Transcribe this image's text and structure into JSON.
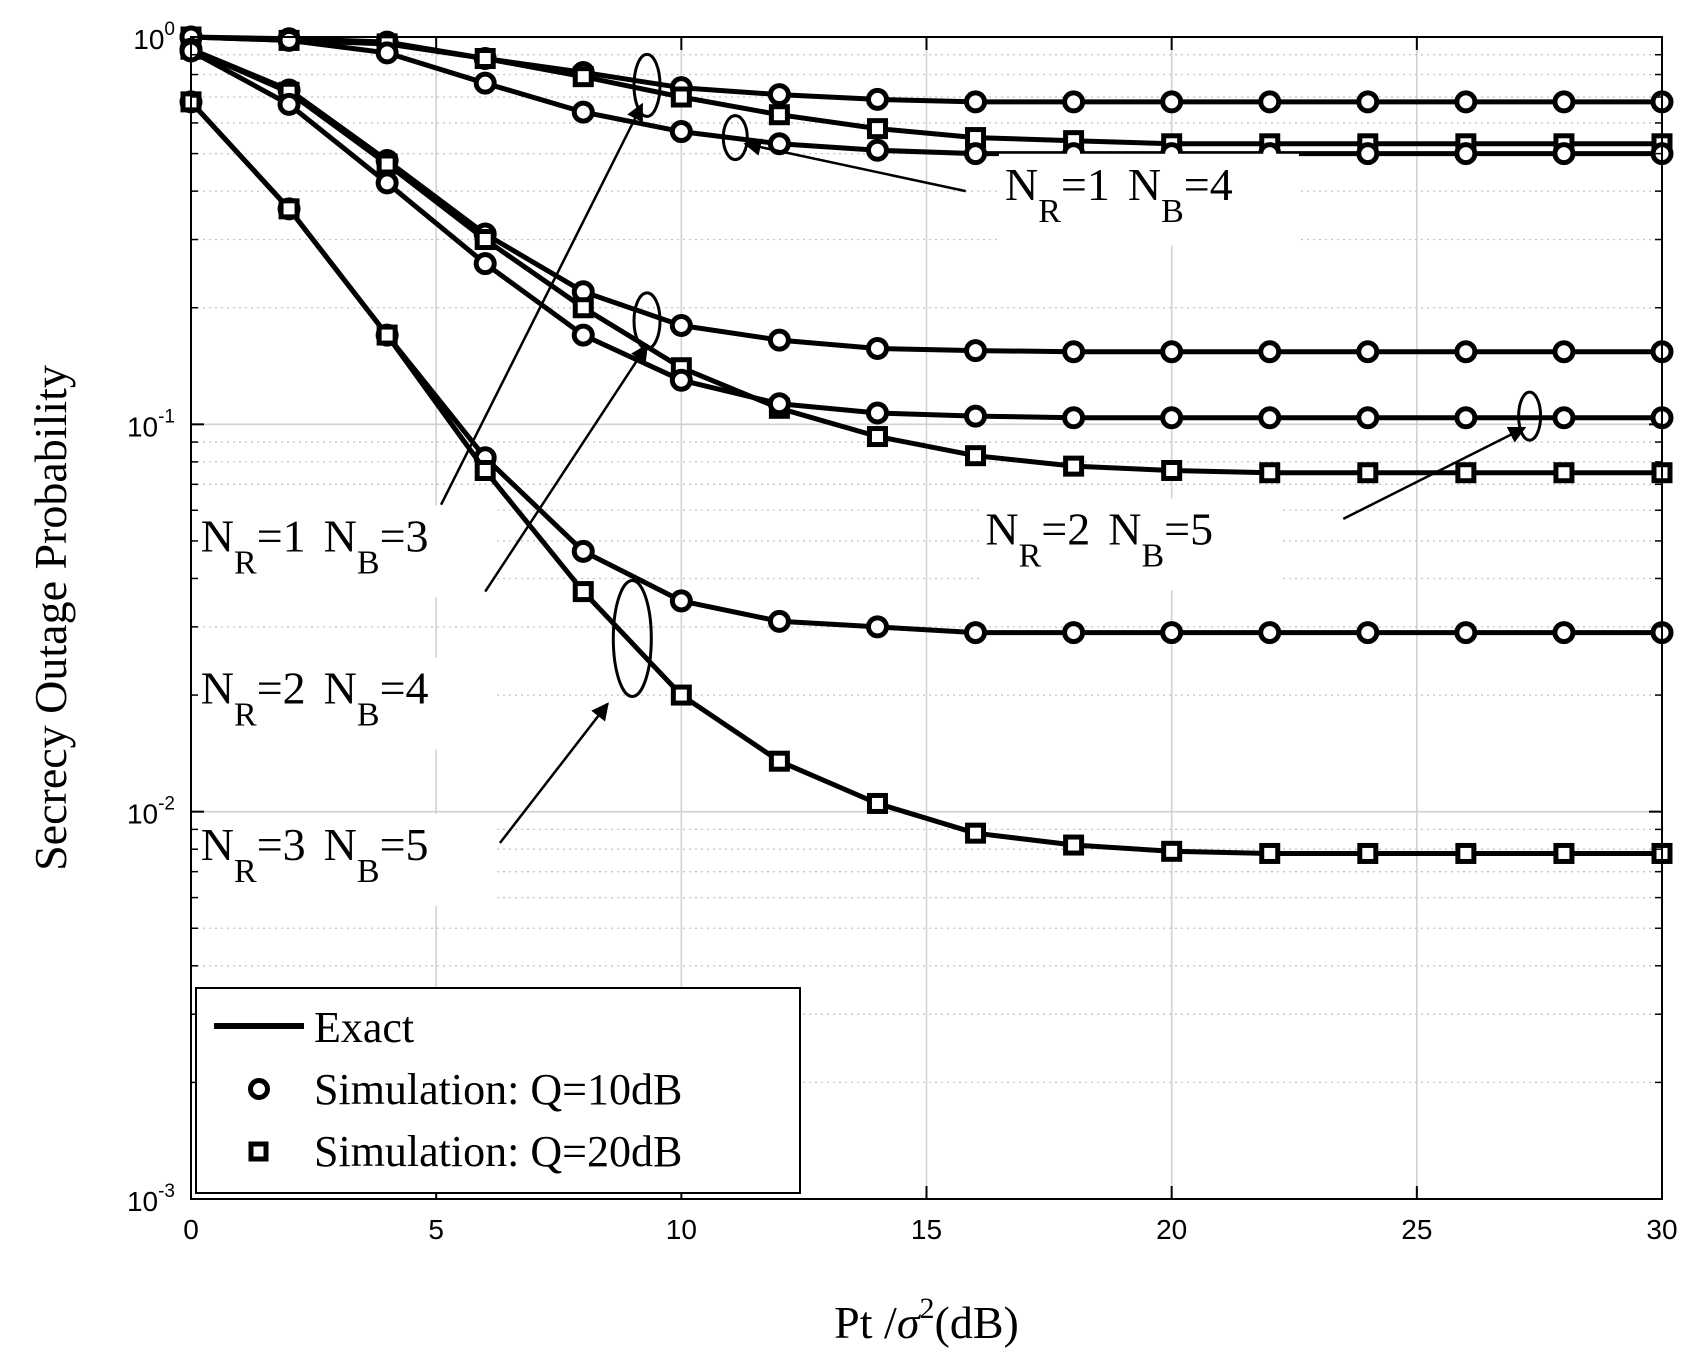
{
  "chart_data": {
    "type": "line",
    "xlabel": "Pt /σ²(dB)",
    "xlabel_parts": {
      "main": "Pt /",
      "symbol": "σ",
      "exponent": "2",
      "tail": "(dB)"
    },
    "ylabel": "Secrecy Outage Probability",
    "xlim": [
      0,
      30
    ],
    "ylim": [
      0.001,
      1
    ],
    "yscale": "log",
    "grid": true,
    "x_ticks": [
      "0",
      "5",
      "10",
      "15",
      "20",
      "25",
      "30"
    ],
    "y_ticks": [
      {
        "base": "10",
        "exp": "0"
      },
      {
        "base": "10",
        "exp": "-1"
      },
      {
        "base": "10",
        "exp": "-2"
      },
      {
        "base": "10",
        "exp": "-3"
      }
    ],
    "x": [
      0,
      2,
      4,
      6,
      8,
      10,
      12,
      14,
      16,
      18,
      20,
      22,
      24,
      26,
      28,
      30
    ],
    "series": [
      {
        "group": "NR=1 NB=3",
        "marker": "circle",
        "values": [
          1.0,
          0.99,
          0.97,
          0.88,
          0.81,
          0.74,
          0.71,
          0.69,
          0.68,
          0.68,
          0.68,
          0.68,
          0.68,
          0.68,
          0.68,
          0.68
        ]
      },
      {
        "group": "NR=1 NB=3",
        "marker": "square",
        "values": [
          1.0,
          0.98,
          0.96,
          0.88,
          0.79,
          0.7,
          0.63,
          0.58,
          0.55,
          0.54,
          0.53,
          0.53,
          0.53,
          0.53,
          0.53,
          0.53
        ]
      },
      {
        "group": "NR=1 NB=4",
        "marker": "circle",
        "values": [
          1.0,
          0.98,
          0.91,
          0.76,
          0.64,
          0.57,
          0.53,
          0.51,
          0.5,
          0.5,
          0.5,
          0.5,
          0.5,
          0.5,
          0.5,
          0.5
        ]
      },
      {
        "group": "NR=2 NB=4",
        "marker": "circle",
        "values": [
          0.93,
          0.73,
          0.48,
          0.31,
          0.22,
          0.18,
          0.165,
          0.157,
          0.155,
          0.154,
          0.154,
          0.154,
          0.154,
          0.154,
          0.154,
          0.154
        ]
      },
      {
        "group": "NR=2 NB=4",
        "marker": "square",
        "values": [
          0.93,
          0.72,
          0.47,
          0.3,
          0.2,
          0.14,
          0.11,
          0.093,
          0.083,
          0.078,
          0.076,
          0.075,
          0.075,
          0.075,
          0.075,
          0.075
        ]
      },
      {
        "group": "NR=2 NB=5",
        "marker": "circle",
        "values": [
          0.92,
          0.67,
          0.42,
          0.26,
          0.17,
          0.13,
          0.113,
          0.107,
          0.105,
          0.104,
          0.104,
          0.104,
          0.104,
          0.104,
          0.104,
          0.104
        ]
      },
      {
        "group": "NR=3 NB=5",
        "marker": "circle",
        "values": [
          0.68,
          0.36,
          0.17,
          0.082,
          0.047,
          0.035,
          0.031,
          0.03,
          0.029,
          0.029,
          0.029,
          0.029,
          0.029,
          0.029,
          0.029,
          0.029
        ]
      },
      {
        "group": "NR=3 NB=5",
        "marker": "square",
        "values": [
          0.68,
          0.36,
          0.17,
          0.076,
          0.037,
          0.02,
          0.0135,
          0.0105,
          0.0088,
          0.0082,
          0.0079,
          0.0078,
          0.0078,
          0.0078,
          0.0078,
          0.0078
        ]
      }
    ],
    "annotations": [
      {
        "id": "nr1nb4",
        "N": "N",
        "R": "R",
        "eq1": "=1",
        "B": "B",
        "eq2": "=4",
        "ellipse": {
          "x": 11.1,
          "y": 0.55
        },
        "text_x": 16.6,
        "text_y": 0.38,
        "arrow_from": {
          "x": 15.8,
          "y": 0.4
        },
        "arrow_to": {
          "x": 11.3,
          "y": 0.53
        }
      },
      {
        "id": "nr1nb3",
        "N": "N",
        "R": "R",
        "eq1": "=1",
        "B": "B",
        "eq2": "=3",
        "ellipse": {
          "x": 9.3,
          "y": 0.75
        },
        "text_x": 0.2,
        "text_y": 0.047,
        "arrow_from": {
          "x": 5.1,
          "y": 0.062
        },
        "arrow_to": {
          "x": 9.2,
          "y": 0.67
        }
      },
      {
        "id": "nr2nb4",
        "N": "N",
        "R": "R",
        "eq1": "=2",
        "B": "B",
        "eq2": "=4",
        "ellipse": {
          "x": 9.3,
          "y": 0.185
        },
        "text_x": 0.2,
        "text_y": 0.019,
        "arrow_from": {
          "x": 6.0,
          "y": 0.037
        },
        "arrow_to": {
          "x": 9.3,
          "y": 0.16
        }
      },
      {
        "id": "nr2nb5",
        "N": "N",
        "R": "R",
        "eq1": "=2",
        "B": "B",
        "eq2": "=5",
        "ellipse": {
          "x": 27.3,
          "y": 0.105
        },
        "text_x": 16.2,
        "text_y": 0.049,
        "arrow_from": {
          "x": 23.5,
          "y": 0.057
        },
        "arrow_to": {
          "x": 27.2,
          "y": 0.098
        }
      },
      {
        "id": "nr3nb5",
        "N": "N",
        "R": "R",
        "eq1": "=3",
        "B": "B",
        "eq2": "=5",
        "ellipse": {
          "x": 9.0,
          "y": 0.028
        },
        "text_x": 0.2,
        "text_y": 0.0075,
        "arrow_from": {
          "x": 6.3,
          "y": 0.0083
        },
        "arrow_to": {
          "x": 8.5,
          "y": 0.019
        }
      }
    ],
    "legend": {
      "position": "bottom-left",
      "entries": [
        {
          "label": "Exact",
          "style": "line"
        },
        {
          "label": "Simulation: Q=10dB",
          "style": "circle"
        },
        {
          "label": "Simulation: Q=20dB",
          "style": "square"
        }
      ]
    }
  }
}
